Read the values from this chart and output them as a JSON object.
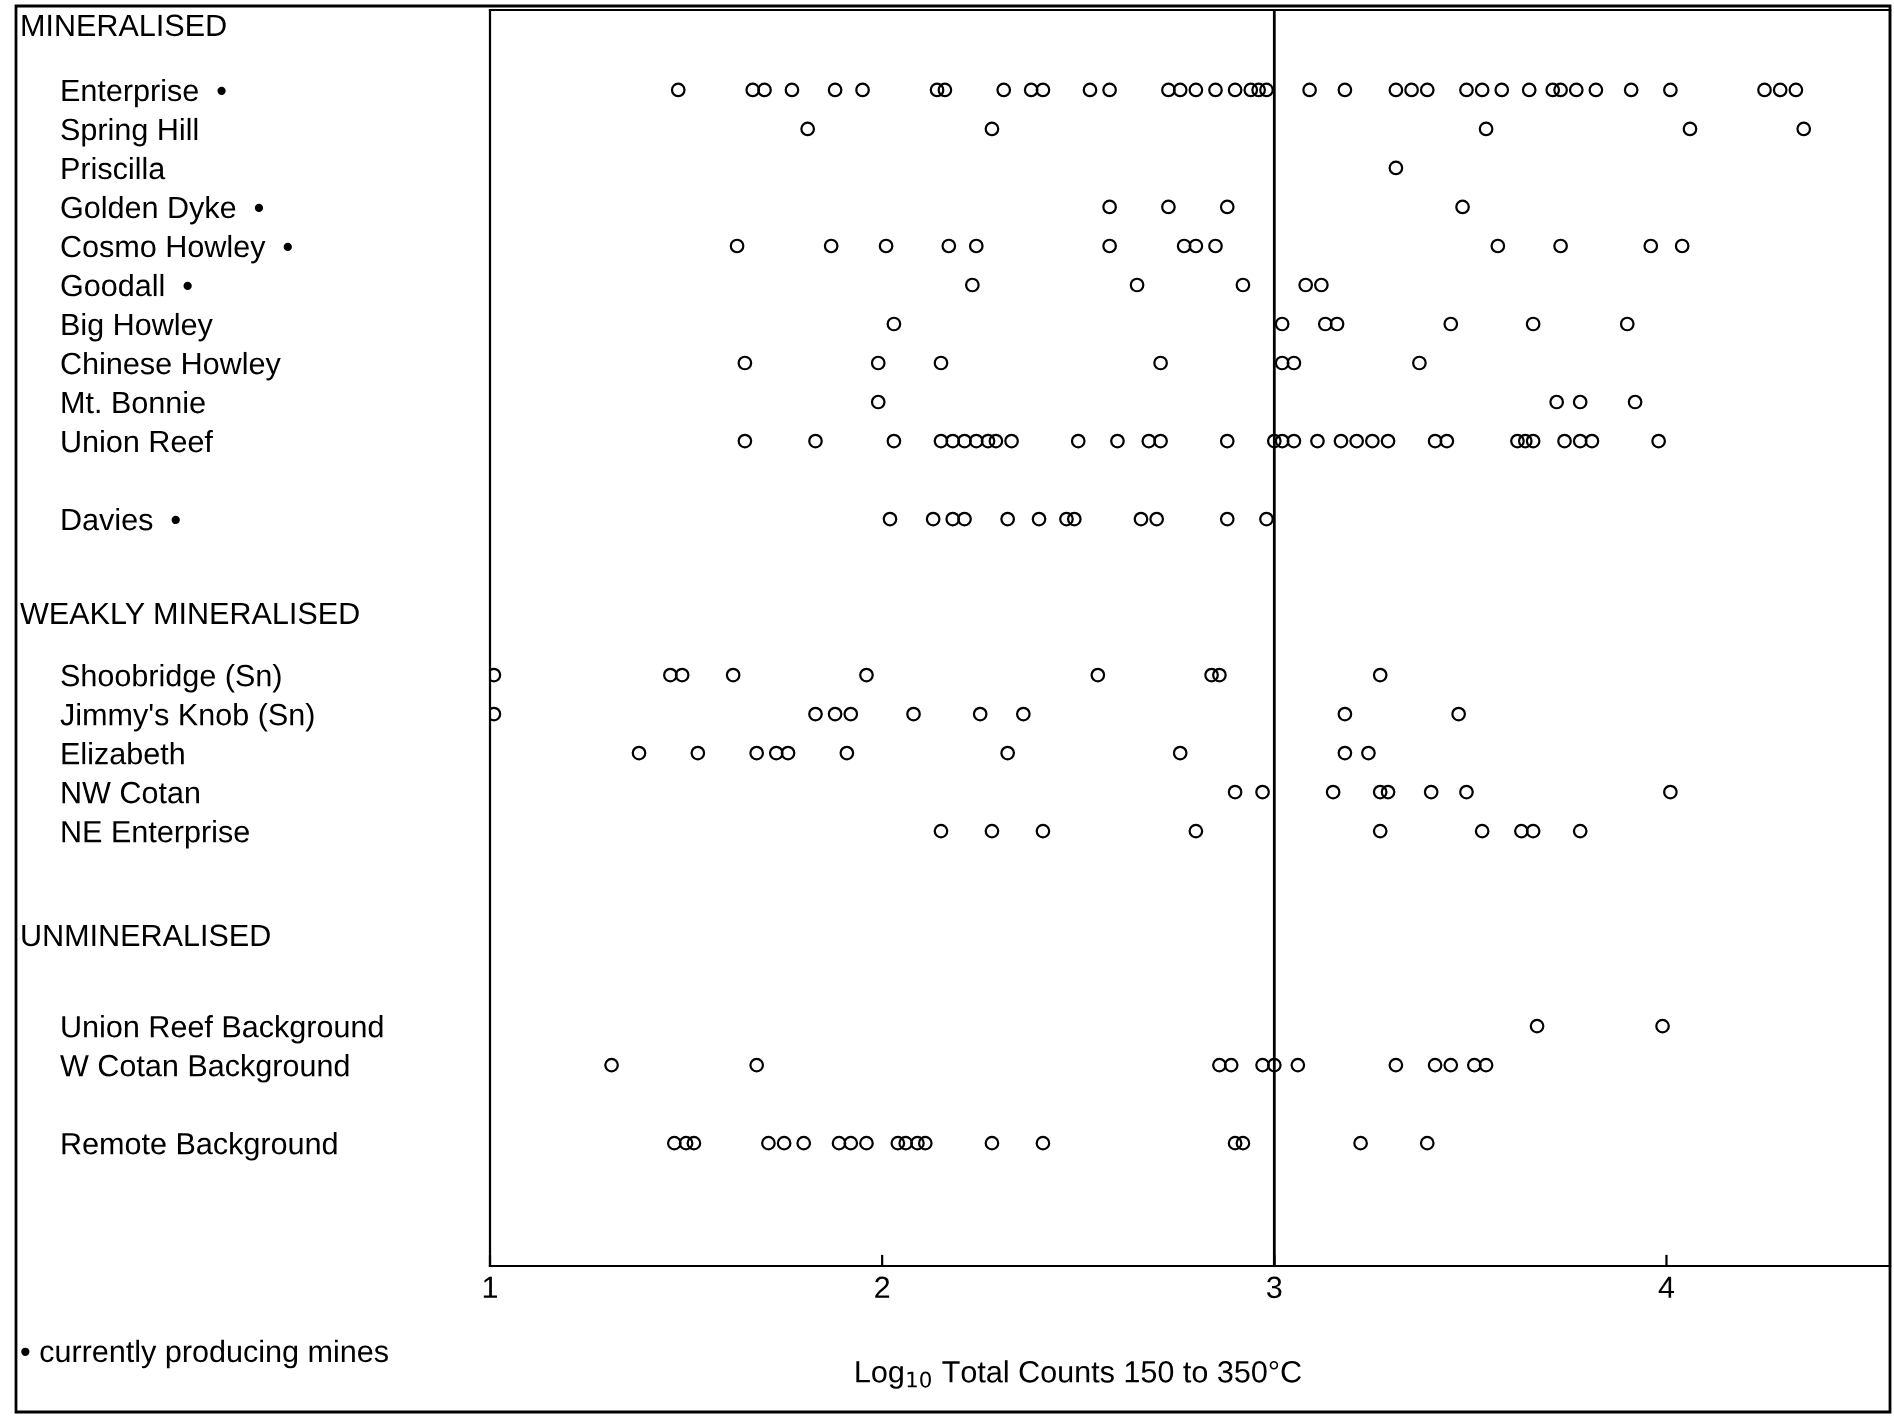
{
  "chart_data": {
    "type": "scatter",
    "orientation": "horizontal",
    "xlabel": "Log$_{10}$ Total Counts 150 to 350°C",
    "categories": [
      null,
      "Enterprise  •",
      "Spring Hill",
      "Priscilla",
      "Golden Dyke  •",
      "Cosmo Howley  •",
      "Goodall  •",
      "Big Howley",
      "Chinese Howley",
      "Mt. Bonnie",
      "Union Reef",
      null,
      "Davies  •",
      null,
      null,
      null,
      "Shoobridge (Sn)",
      "Jimmy's Knob (Sn)",
      "Elizabeth",
      "NW Cotan",
      "NE Enterprise",
      null,
      null,
      null,
      null,
      "Union Reef Background",
      "W Cotan Background",
      null,
      "Remote Background",
      null,
      null
    ],
    "series": [
      {
        "values": [
          null,
          1.48,
          1.81,
          3.31,
          2.58,
          1.63,
          2.23,
          2.03,
          1.65,
          1.99,
          1.65,
          null,
          2.02,
          null,
          null,
          null,
          1.01,
          1.01,
          1.38,
          2.9,
          2.15,
          null,
          null,
          null,
          null,
          3.67,
          1.31,
          null,
          1.47,
          null,
          null
        ]
      },
      {
        "values": [
          null,
          1.67,
          2.28,
          null,
          2.73,
          1.87,
          2.65,
          3.02,
          1.99,
          3.72,
          1.83,
          null,
          2.13,
          null,
          null,
          null,
          1.46,
          1.83,
          1.53,
          2.97,
          2.28,
          null,
          null,
          null,
          null,
          3.99,
          1.68,
          null,
          1.5,
          null,
          null
        ]
      },
      {
        "values": [
          null,
          1.7,
          3.54,
          null,
          2.88,
          2.01,
          2.92,
          3.13,
          2.15,
          3.78,
          2.03,
          null,
          2.18,
          null,
          null,
          null,
          1.49,
          1.88,
          1.68,
          3.15,
          2.41,
          null,
          null,
          null,
          null,
          null,
          2.86,
          null,
          1.52,
          null,
          null
        ]
      },
      {
        "values": [
          null,
          1.77,
          4.06,
          null,
          3.48,
          2.17,
          3.08,
          3.16,
          2.71,
          3.92,
          2.15,
          null,
          2.21,
          null,
          null,
          null,
          1.62,
          1.92,
          1.73,
          3.27,
          2.8,
          null,
          null,
          null,
          null,
          null,
          2.89,
          null,
          1.71,
          null,
          null
        ]
      },
      {
        "values": [
          null,
          1.88,
          4.35,
          null,
          null,
          2.24,
          3.12,
          3.45,
          3.02,
          null,
          2.18,
          null,
          2.32,
          null,
          null,
          null,
          1.96,
          2.08,
          1.76,
          3.29,
          3.27,
          null,
          null,
          null,
          null,
          null,
          2.97,
          null,
          1.75,
          null,
          null
        ]
      },
      {
        "values": [
          null,
          1.95,
          null,
          null,
          null,
          2.58,
          null,
          3.66,
          3.05,
          null,
          2.21,
          null,
          2.4,
          null,
          null,
          null,
          2.55,
          2.25,
          1.91,
          3.4,
          3.53,
          null,
          null,
          null,
          null,
          null,
          3.0,
          null,
          1.8,
          null,
          null
        ]
      },
      {
        "values": [
          null,
          2.14,
          null,
          null,
          null,
          2.77,
          null,
          3.9,
          3.37,
          null,
          2.24,
          null,
          2.47,
          null,
          null,
          null,
          2.84,
          2.36,
          2.32,
          3.49,
          3.63,
          null,
          null,
          null,
          null,
          null,
          3.06,
          null,
          1.89,
          null,
          null
        ]
      },
      {
        "values": [
          null,
          2.16,
          null,
          null,
          null,
          2.8,
          null,
          null,
          null,
          null,
          2.27,
          null,
          2.49,
          null,
          null,
          null,
          2.86,
          3.18,
          2.76,
          4.01,
          3.66,
          null,
          null,
          null,
          null,
          null,
          3.31,
          null,
          1.92,
          null,
          null
        ]
      },
      {
        "values": [
          null,
          2.31,
          null,
          null,
          null,
          2.85,
          null,
          null,
          null,
          null,
          2.29,
          null,
          2.66,
          null,
          null,
          null,
          3.27,
          3.47,
          3.18,
          null,
          3.78,
          null,
          null,
          null,
          null,
          null,
          3.41,
          null,
          1.96,
          null,
          null
        ]
      },
      {
        "values": [
          null,
          2.38,
          null,
          null,
          null,
          3.57,
          null,
          null,
          null,
          null,
          2.33,
          null,
          2.7,
          null,
          null,
          null,
          null,
          null,
          3.24,
          null,
          null,
          null,
          null,
          null,
          null,
          null,
          3.45,
          null,
          2.04,
          null,
          null
        ]
      },
      {
        "values": [
          null,
          2.41,
          null,
          null,
          null,
          3.73,
          null,
          null,
          null,
          null,
          2.5,
          null,
          2.88,
          null,
          null,
          null,
          null,
          null,
          null,
          null,
          null,
          null,
          null,
          null,
          null,
          null,
          3.51,
          null,
          2.06,
          null,
          null
        ]
      },
      {
        "values": [
          null,
          2.53,
          null,
          null,
          null,
          3.96,
          null,
          null,
          null,
          null,
          2.6,
          null,
          2.98,
          null,
          null,
          null,
          null,
          null,
          null,
          null,
          null,
          null,
          null,
          null,
          null,
          null,
          3.54,
          null,
          2.09,
          null,
          null
        ]
      },
      {
        "values": [
          null,
          2.58,
          null,
          null,
          null,
          4.04,
          null,
          null,
          null,
          null,
          2.68,
          null,
          null,
          null,
          null,
          null,
          null,
          null,
          null,
          null,
          null,
          null,
          null,
          null,
          null,
          null,
          null,
          null,
          2.11,
          null,
          null
        ]
      },
      {
        "values": [
          null,
          2.73,
          null,
          null,
          null,
          null,
          null,
          null,
          null,
          null,
          2.71,
          null,
          null,
          null,
          null,
          null,
          null,
          null,
          null,
          null,
          null,
          null,
          null,
          null,
          null,
          null,
          null,
          null,
          2.28,
          null,
          null
        ]
      },
      {
        "values": [
          null,
          2.76,
          null,
          null,
          null,
          null,
          null,
          null,
          null,
          null,
          2.88,
          null,
          null,
          null,
          null,
          null,
          null,
          null,
          null,
          null,
          null,
          null,
          null,
          null,
          null,
          null,
          null,
          null,
          2.41,
          null,
          null
        ]
      },
      {
        "values": [
          null,
          2.8,
          null,
          null,
          null,
          null,
          null,
          null,
          null,
          null,
          3.0,
          null,
          null,
          null,
          null,
          null,
          null,
          null,
          null,
          null,
          null,
          null,
          null,
          null,
          null,
          null,
          null,
          null,
          2.9,
          null,
          null
        ]
      },
      {
        "values": [
          null,
          2.85,
          null,
          null,
          null,
          null,
          null,
          null,
          null,
          null,
          3.02,
          null,
          null,
          null,
          null,
          null,
          null,
          null,
          null,
          null,
          null,
          null,
          null,
          null,
          null,
          null,
          null,
          null,
          2.92,
          null,
          null
        ]
      },
      {
        "values": [
          null,
          2.9,
          null,
          null,
          null,
          null,
          null,
          null,
          null,
          null,
          3.05,
          null,
          null,
          null,
          null,
          null,
          null,
          null,
          null,
          null,
          null,
          null,
          null,
          null,
          null,
          null,
          null,
          null,
          3.22,
          null,
          null
        ]
      },
      {
        "values": [
          null,
          2.94,
          null,
          null,
          null,
          null,
          null,
          null,
          null,
          null,
          3.11,
          null,
          null,
          null,
          null,
          null,
          null,
          null,
          null,
          null,
          null,
          null,
          null,
          null,
          null,
          null,
          null,
          null,
          3.39,
          null,
          null
        ]
      },
      {
        "values": [
          null,
          2.96,
          null,
          null,
          null,
          null,
          null,
          null,
          null,
          null,
          3.17,
          null,
          null,
          null,
          null,
          null,
          null,
          null,
          null,
          null,
          null,
          null,
          null,
          null,
          null,
          null,
          null,
          null,
          null,
          null,
          null
        ]
      },
      {
        "values": [
          null,
          2.98,
          null,
          null,
          null,
          null,
          null,
          null,
          null,
          null,
          3.21,
          null,
          null,
          null,
          null,
          null,
          null,
          null,
          null,
          null,
          null,
          null,
          null,
          null,
          null,
          null,
          null,
          null,
          null,
          null,
          null
        ]
      },
      {
        "values": [
          null,
          3.09,
          null,
          null,
          null,
          null,
          null,
          null,
          null,
          null,
          3.25,
          null,
          null,
          null,
          null,
          null,
          null,
          null,
          null,
          null,
          null,
          null,
          null,
          null,
          null,
          null,
          null,
          null,
          null,
          null,
          null
        ]
      },
      {
        "values": [
          null,
          3.18,
          null,
          null,
          null,
          null,
          null,
          null,
          null,
          null,
          3.29,
          null,
          null,
          null,
          null,
          null,
          null,
          null,
          null,
          null,
          null,
          null,
          null,
          null,
          null,
          null,
          null,
          null,
          null,
          null,
          null
        ]
      },
      {
        "values": [
          null,
          3.31,
          null,
          null,
          null,
          null,
          null,
          null,
          null,
          null,
          3.41,
          null,
          null,
          null,
          null,
          null,
          null,
          null,
          null,
          null,
          null,
          null,
          null,
          null,
          null,
          null,
          null,
          null,
          null,
          null,
          null
        ]
      },
      {
        "values": [
          null,
          3.35,
          null,
          null,
          null,
          null,
          null,
          null,
          null,
          null,
          3.44,
          null,
          null,
          null,
          null,
          null,
          null,
          null,
          null,
          null,
          null,
          null,
          null,
          null,
          null,
          null,
          null,
          null,
          null,
          null,
          null
        ]
      },
      {
        "values": [
          null,
          3.39,
          null,
          null,
          null,
          null,
          null,
          null,
          null,
          null,
          3.62,
          null,
          null,
          null,
          null,
          null,
          null,
          null,
          null,
          null,
          null,
          null,
          null,
          null,
          null,
          null,
          null,
          null,
          null,
          null,
          null
        ]
      },
      {
        "values": [
          null,
          3.49,
          null,
          null,
          null,
          null,
          null,
          null,
          null,
          null,
          3.64,
          null,
          null,
          null,
          null,
          null,
          null,
          null,
          null,
          null,
          null,
          null,
          null,
          null,
          null,
          null,
          null,
          null,
          null,
          null,
          null
        ]
      },
      {
        "values": [
          null,
          3.53,
          null,
          null,
          null,
          null,
          null,
          null,
          null,
          null,
          3.66,
          null,
          null,
          null,
          null,
          null,
          null,
          null,
          null,
          null,
          null,
          null,
          null,
          null,
          null,
          null,
          null,
          null,
          null,
          null,
          null
        ]
      },
      {
        "values": [
          null,
          3.58,
          null,
          null,
          null,
          null,
          null,
          null,
          null,
          null,
          3.74,
          null,
          null,
          null,
          null,
          null,
          null,
          null,
          null,
          null,
          null,
          null,
          null,
          null,
          null,
          null,
          null,
          null,
          null,
          null,
          null
        ]
      },
      {
        "values": [
          null,
          3.65,
          null,
          null,
          null,
          null,
          null,
          null,
          null,
          null,
          3.78,
          null,
          null,
          null,
          null,
          null,
          null,
          null,
          null,
          null,
          null,
          null,
          null,
          null,
          null,
          null,
          null,
          null,
          null,
          null,
          null
        ]
      },
      {
        "values": [
          null,
          3.71,
          null,
          null,
          null,
          null,
          null,
          null,
          null,
          null,
          3.81,
          null,
          null,
          null,
          null,
          null,
          null,
          null,
          null,
          null,
          null,
          null,
          null,
          null,
          null,
          null,
          null,
          null,
          null,
          null,
          null
        ]
      },
      {
        "values": [
          null,
          3.73,
          null,
          null,
          null,
          null,
          null,
          null,
          null,
          null,
          3.98,
          null,
          null,
          null,
          null,
          null,
          null,
          null,
          null,
          null,
          null,
          null,
          null,
          null,
          null,
          null,
          null,
          null,
          null,
          null,
          null
        ]
      },
      {
        "values": [
          null,
          3.77,
          null,
          null,
          null,
          null,
          null,
          null,
          null,
          null,
          null,
          null,
          null,
          null,
          null,
          null,
          null,
          null,
          null,
          null,
          null,
          null,
          null,
          null,
          null,
          null,
          null,
          null,
          null,
          null,
          null
        ]
      },
      {
        "values": [
          null,
          3.82,
          null,
          null,
          null,
          null,
          null,
          null,
          null,
          null,
          null,
          null,
          null,
          null,
          null,
          null,
          null,
          null,
          null,
          null,
          null,
          null,
          null,
          null,
          null,
          null,
          null,
          null,
          null,
          null,
          null
        ]
      },
      {
        "values": [
          null,
          3.91,
          null,
          null,
          null,
          null,
          null,
          null,
          null,
          null,
          null,
          null,
          null,
          null,
          null,
          null,
          null,
          null,
          null,
          null,
          null,
          null,
          null,
          null,
          null,
          null,
          null,
          null,
          null,
          null,
          null
        ]
      },
      {
        "values": [
          null,
          4.01,
          null,
          null,
          null,
          null,
          null,
          null,
          null,
          null,
          null,
          null,
          null,
          null,
          null,
          null,
          null,
          null,
          null,
          null,
          null,
          null,
          null,
          null,
          null,
          null,
          null,
          null,
          null,
          null,
          null
        ]
      },
      {
        "values": [
          null,
          4.25,
          null,
          null,
          null,
          null,
          null,
          null,
          null,
          null,
          null,
          null,
          null,
          null,
          null,
          null,
          null,
          null,
          null,
          null,
          null,
          null,
          null,
          null,
          null,
          null,
          null,
          null,
          null,
          null,
          null
        ]
      },
      {
        "values": [
          null,
          4.29,
          null,
          null,
          null,
          null,
          null,
          null,
          null,
          null,
          null,
          null,
          null,
          null,
          null,
          null,
          null,
          null,
          null,
          null,
          null,
          null,
          null,
          null,
          null,
          null,
          null,
          null,
          null,
          null,
          null
        ]
      },
      {
        "values": [
          null,
          4.33,
          null,
          null,
          null,
          null,
          null,
          null,
          null,
          null,
          null,
          null,
          null,
          null,
          null,
          null,
          null,
          null,
          null,
          null,
          null,
          null,
          null,
          null,
          null,
          null,
          null,
          null,
          null,
          null,
          null
        ]
      }
    ],
    "color": "#000000",
    "marker": "circle",
    "xlim": [
      1,
      4.57
    ],
    "xticks": [
      1,
      2,
      3,
      4
    ],
    "ref_lines": [
      {
        "axis": "x",
        "value": 3,
        "color": "#000000",
        "line_style": "solid"
      }
    ],
    "annotations": [
      "MINERALISED",
      "WEAKLY MINERALISED",
      "UNMINERALISED",
      "• currently producing mines"
    ],
    "grid": false,
    "legend": false
  }
}
